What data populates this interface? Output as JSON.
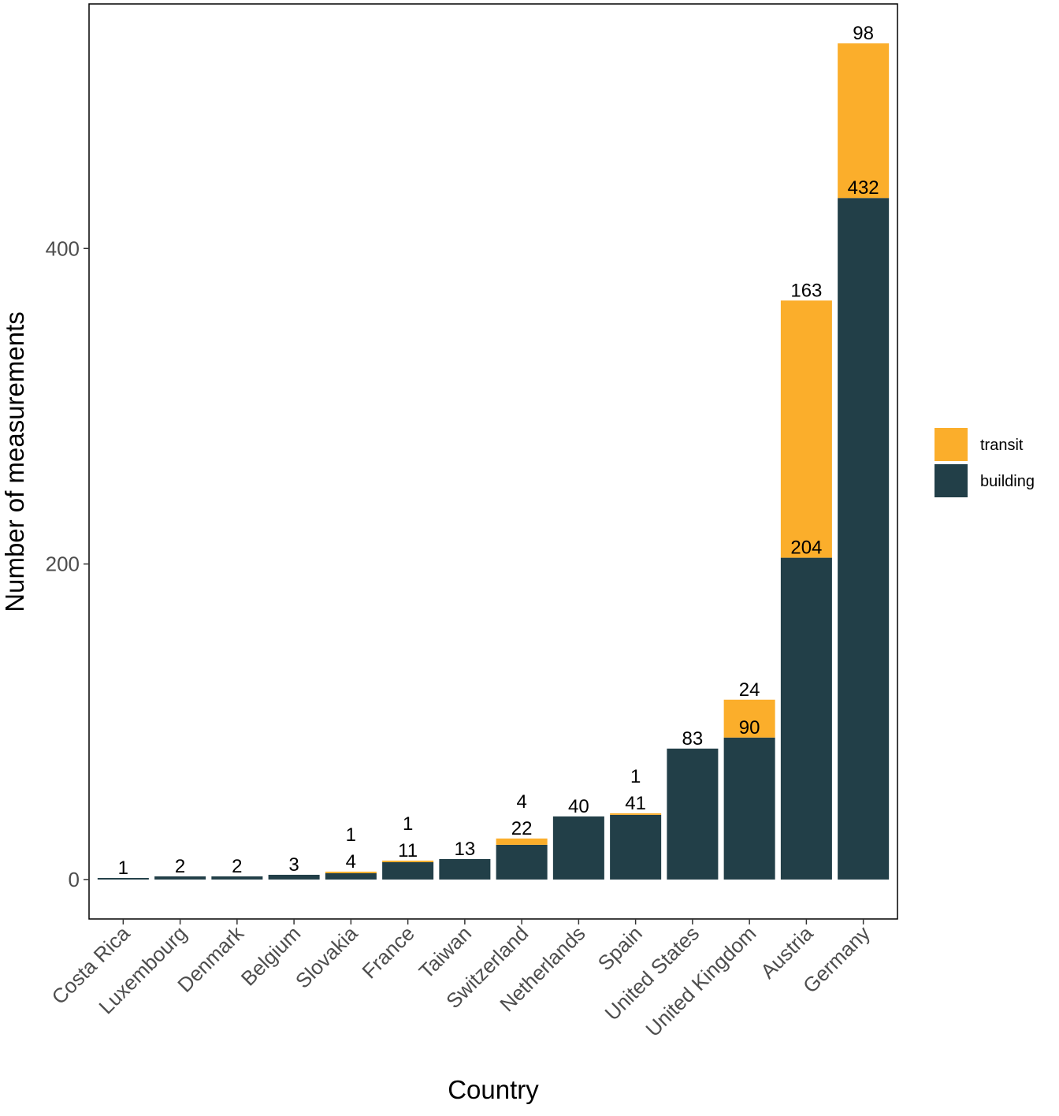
{
  "chart_data": {
    "type": "bar",
    "stacked": true,
    "xlabel": "Country",
    "ylabel": "Number of measurements",
    "ylim": [
      -25,
      555
    ],
    "yticks": [
      0,
      200,
      400
    ],
    "grid": false,
    "legend_position": "right",
    "categories": [
      "Costa Rica",
      "Luxembourg",
      "Denmark",
      "Belgium",
      "Slovakia",
      "France",
      "Taiwan",
      "Switzerland",
      "Netherlands",
      "Spain",
      "United States",
      "United Kingdom",
      "Austria",
      "Germany"
    ],
    "series": [
      {
        "name": "building",
        "color": "#223f48",
        "values": [
          1,
          2,
          2,
          3,
          4,
          11,
          13,
          22,
          40,
          41,
          83,
          90,
          204,
          432
        ]
      },
      {
        "name": "transit",
        "color": "#fbae2b",
        "values": [
          0,
          0,
          0,
          0,
          1,
          1,
          0,
          4,
          0,
          1,
          0,
          24,
          163,
          98
        ]
      }
    ],
    "legend": [
      "transit",
      "building"
    ]
  }
}
